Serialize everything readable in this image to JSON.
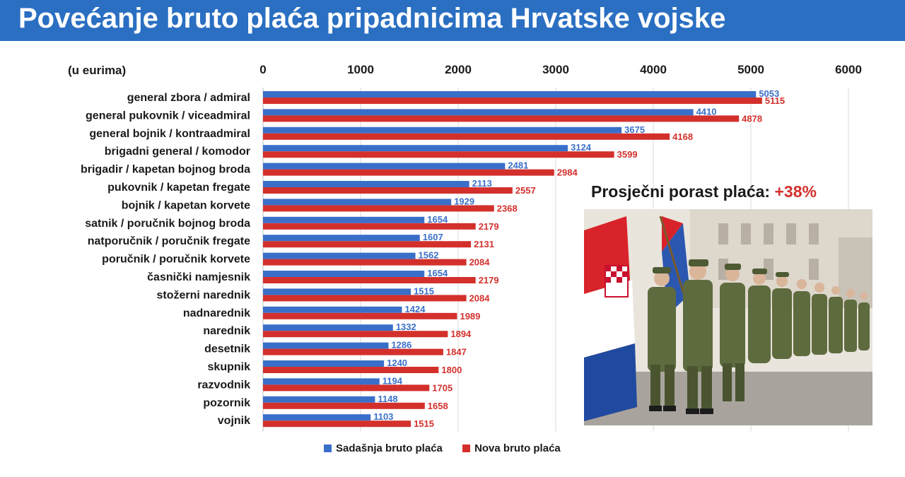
{
  "title": "Povećanje bruto plaća pripadnicima Hrvatske vojske",
  "colors": {
    "banner": "#2a6fc2",
    "current": "#3a6fc9",
    "new": "#d3302c"
  },
  "chart_data": {
    "type": "bar",
    "orientation": "horizontal",
    "unit_label": "(u eurima)",
    "xlim": [
      0,
      6000
    ],
    "ticks": [
      "0",
      "1000",
      "2000",
      "3000",
      "4000",
      "5000",
      "6000"
    ],
    "tick_values": [
      0,
      1000,
      2000,
      3000,
      4000,
      5000,
      6000
    ],
    "gridlines": true,
    "legend_position": "bottom",
    "categories": [
      "general zbora / admiral",
      "general pukovnik / viceadmiral",
      "general bojnik / kontraadmiral",
      "brigadni general / komodor",
      "brigadir / kapetan bojnog broda",
      "pukovnik / kapetan fregate",
      "bojnik / kapetan korvete",
      "satnik / poručnik bojnog broda",
      "natporučnik / poručnik fregate",
      "poručnik / poručnik korvete",
      "časnički namjesnik",
      "stožerni narednik",
      "nadnarednik",
      "narednik",
      "desetnik",
      "skupnik",
      "razvodnik",
      "pozornik",
      "vojnik"
    ],
    "series": [
      {
        "name": "Sadašnja bruto plaća",
        "color": "#3a6fc9",
        "values": [
          5053,
          4410,
          3675,
          3124,
          2481,
          2113,
          1929,
          1654,
          1607,
          1562,
          1654,
          1515,
          1424,
          1332,
          1286,
          1240,
          1194,
          1148,
          1103
        ]
      },
      {
        "name": "Nova bruto plaća",
        "color": "#d3302c",
        "values": [
          5115,
          4878,
          4168,
          3599,
          2984,
          2557,
          2368,
          2179,
          2131,
          2084,
          2179,
          2084,
          1989,
          1894,
          1847,
          1800,
          1705,
          1658,
          1515
        ]
      }
    ]
  },
  "annotation": {
    "label": "Prosječni porast plaća:",
    "value": "+38%"
  },
  "photo": {
    "subject": "soldier-parade-photo"
  }
}
